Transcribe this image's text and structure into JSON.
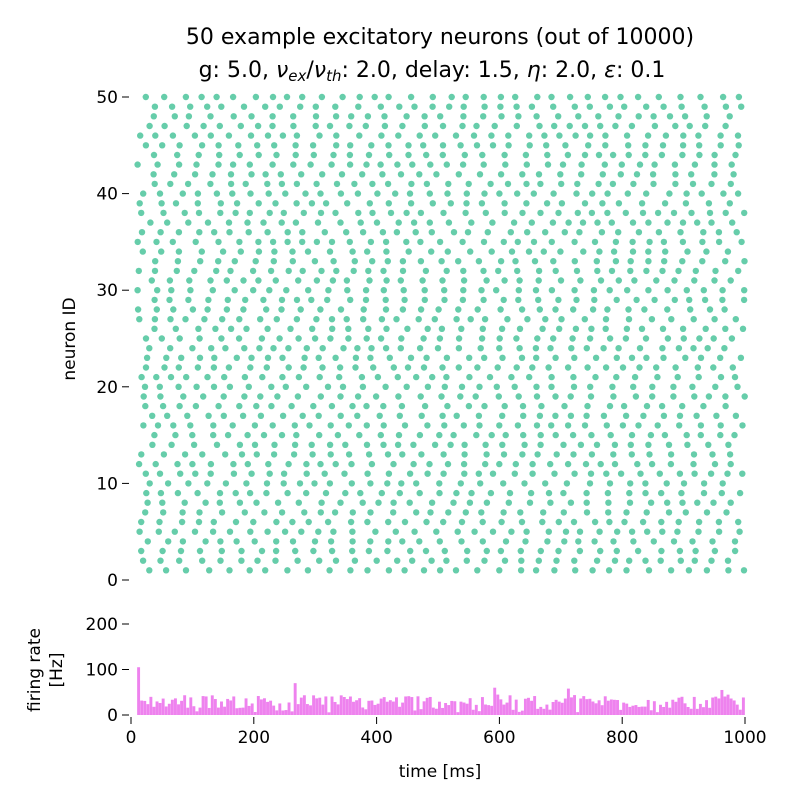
{
  "chart_data": [
    {
      "type": "scatter",
      "title_line1": "50 example excitatory neurons (out of 10000)",
      "title_line2_parts": {
        "g": "g: 5.0, ",
        "nu": "ν",
        "ex": "ex",
        "slash": "/",
        "th": "th",
        "rest1": ": 2.0, delay: 1.5, ",
        "eta": "η",
        "rest2": ": 2.0, ",
        "eps": "ε",
        "rest3": ": 0.1"
      },
      "ylabel": "neuron ID",
      "xlim": [
        0,
        1000
      ],
      "ylim": [
        0,
        50
      ],
      "yticks": [
        "0",
        "10",
        "20",
        "30",
        "40",
        "50"
      ],
      "yticks_values": [
        0,
        10,
        20,
        30,
        40,
        50
      ],
      "marker_color": "#66cdaa",
      "neurons": 50,
      "approx_rate_hz": 33,
      "t_start_ms": 10,
      "t_end_ms": 1000
    },
    {
      "type": "bar",
      "ylabel_line1": "firing rate",
      "ylabel_line2": "[Hz]",
      "xlabel": "time [ms]",
      "xlim": [
        0,
        1000
      ],
      "ylim": [
        0,
        220
      ],
      "xticks": [
        "0",
        "200",
        "400",
        "600",
        "800",
        "1000"
      ],
      "xticks_values": [
        0,
        200,
        400,
        600,
        800,
        1000
      ],
      "yticks": [
        "0",
        "100",
        "200"
      ],
      "yticks_values": [
        0,
        100,
        200
      ],
      "bar_color": "#ee82ee",
      "bin_width_ms": 5,
      "bin_start_ms": 10,
      "peak_values": {
        "10": 105,
        "265": 70,
        "590": 60,
        "710": 58,
        "960": 55
      },
      "typical_rate_hz": 30
    }
  ]
}
